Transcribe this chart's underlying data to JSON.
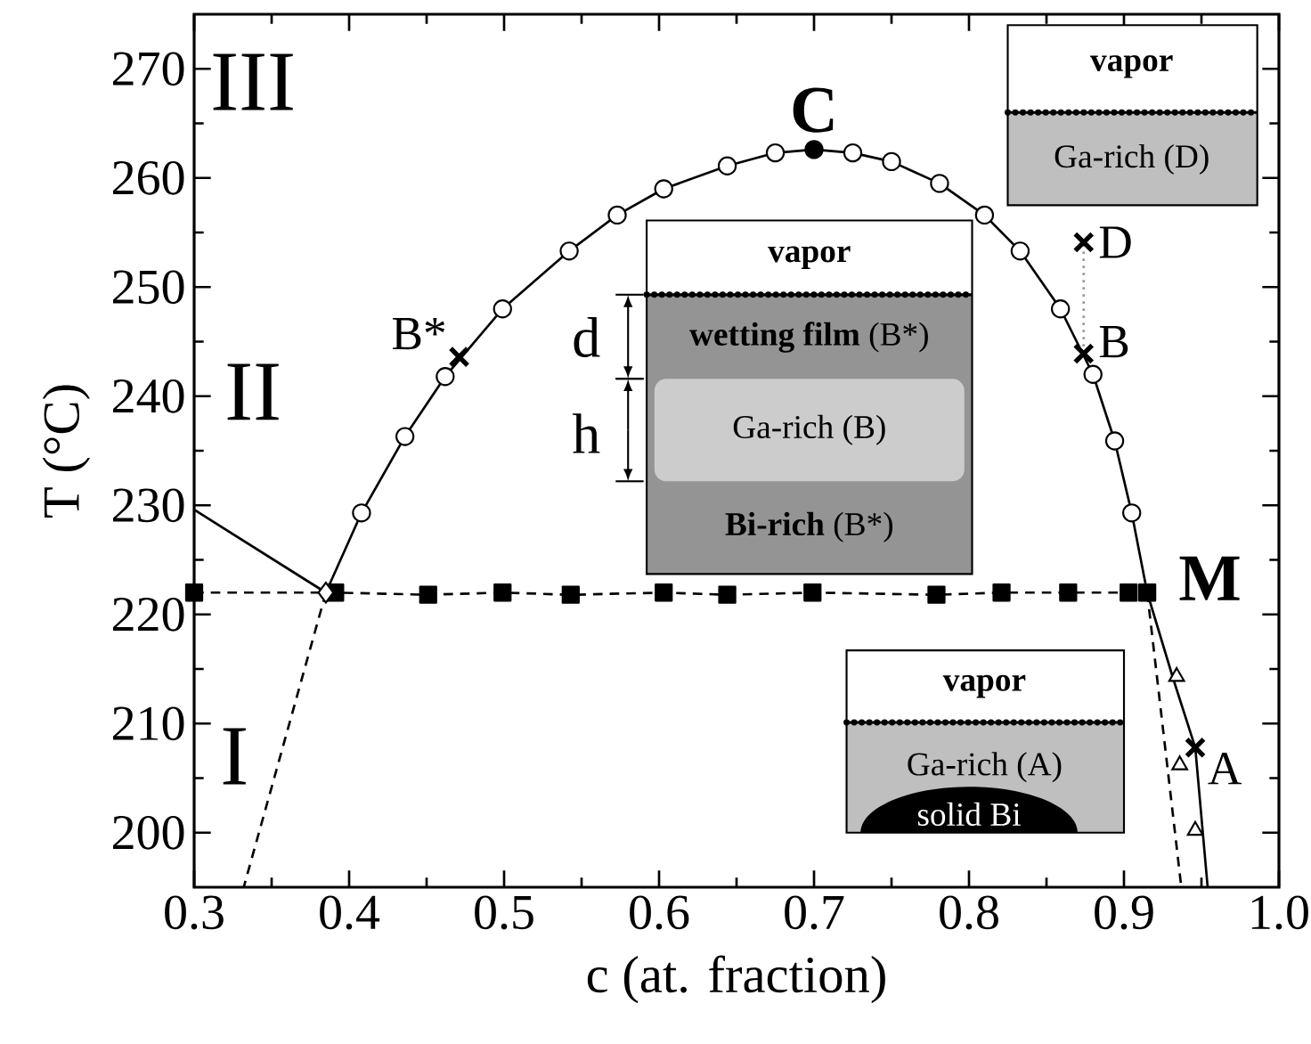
{
  "chart_data": {
    "type": "line",
    "xlabel": "c (at. fraction)",
    "ylabel": "T (°C)",
    "xlim": [
      0.3,
      1.0
    ],
    "ylim": [
      195,
      275
    ],
    "xticks": [
      0.3,
      0.4,
      0.5,
      0.6,
      0.7,
      0.8,
      0.9,
      {
        "value": 1.0,
        "label": "1.0"
      }
    ],
    "yticks": [
      200,
      210,
      220,
      230,
      240,
      250,
      260,
      270
    ],
    "series": [
      {
        "marker": "none",
        "line_style": "solid",
        "color": "#000000",
        "x": [
          0.385,
          0.408,
          0.436,
          0.462,
          0.499,
          0.542,
          0.573,
          0.603,
          0.644,
          0.675,
          0.7,
          0.725,
          0.75,
          0.781,
          0.81,
          0.833,
          0.859,
          0.88,
          0.894,
          0.905,
          0.915,
          0.932,
          0.946,
          0.954
        ],
        "values": [
          222,
          229.3,
          236.3,
          241.8,
          248.0,
          253.3,
          256.6,
          259.0,
          261.1,
          262.3,
          262.6,
          262.3,
          261.5,
          259.5,
          256.6,
          253.3,
          248.0,
          242.0,
          235.9,
          229.3,
          222,
          214,
          207.8,
          195
        ]
      },
      {
        "type": "scatter",
        "marker": "circle",
        "color": "#ffffff",
        "x": [
          0.408,
          0.436,
          0.462,
          0.499,
          0.542,
          0.573,
          0.603,
          0.644,
          0.675,
          0.725,
          0.75,
          0.781,
          0.81,
          0.833,
          0.859,
          0.88,
          0.894,
          0.905
        ],
        "values": [
          229.3,
          236.3,
          241.8,
          248.0,
          253.3,
          256.6,
          259.0,
          261.1,
          262.3,
          262.3,
          261.5,
          259.5,
          256.6,
          253.3,
          248.0,
          242.0,
          235.9,
          229.3
        ]
      },
      {
        "type": "scatter",
        "marker": "circle",
        "color": "#000000",
        "x": [
          0.7
        ],
        "values": [
          262.6
        ]
      },
      {
        "marker": "none",
        "line_style": "solid",
        "color": "#000000",
        "x": [
          0.3,
          0.385
        ],
        "values": [
          229.6,
          222
        ]
      },
      {
        "marker": "square",
        "line_style": "dashed",
        "color": "#000000",
        "x": [
          0.3,
          0.391,
          0.451,
          0.499,
          0.543,
          0.603,
          0.644,
          0.699,
          0.779,
          0.821,
          0.864,
          0.903,
          0.915
        ],
        "values": [
          222,
          222,
          221.8,
          222,
          221.8,
          222,
          221.8,
          222,
          221.8,
          222,
          222,
          222,
          222
        ]
      },
      {
        "type": "scatter",
        "marker": "diamond",
        "color": "#ffffff",
        "x": [
          0.385
        ],
        "values": [
          222
        ]
      },
      {
        "marker": "none",
        "line_style": "dashed",
        "color": "#000000",
        "x": [
          0.385,
          0.332
        ],
        "values": [
          222,
          195
        ]
      },
      {
        "marker": "none",
        "line_style": "dashed",
        "color": "#000000",
        "x": [
          0.915,
          0.937
        ],
        "values": [
          222,
          195
        ]
      },
      {
        "type": "scatter",
        "marker": "triangle",
        "color": "#ffffff",
        "x": [
          0.934,
          0.936,
          0.946
        ],
        "values": [
          214.3,
          206.2,
          200.2
        ]
      },
      {
        "type": "scatter",
        "marker": "cross",
        "color": "#000000",
        "x": [
          0.471,
          0.874,
          0.874,
          0.946
        ],
        "values": [
          243.6,
          243.9,
          254.1,
          207.8
        ]
      },
      {
        "marker": "none",
        "line_style": "dotted",
        "color": "#999999",
        "x": [
          0.874,
          0.874
        ],
        "values": [
          243.9,
          254.1
        ]
      }
    ],
    "annotations": [
      {
        "text": "C",
        "x": 0.7,
        "y": 262.6
      },
      {
        "text": "M",
        "x": 0.915,
        "y": 222
      },
      {
        "text": "B*",
        "x": 0.471,
        "y": 243.6
      },
      {
        "text": "B",
        "x": 0.874,
        "y": 243.9
      },
      {
        "text": "D",
        "x": 0.874,
        "y": 254.1
      },
      {
        "text": "A",
        "x": 0.946,
        "y": 207.8
      },
      "III",
      "II",
      "I",
      "vapor",
      "Ga-rich (D)",
      "vapor",
      "**wetting film** (B*)",
      "Ga-rich (B)",
      "**Bi-rich** (B*)",
      "d",
      "h",
      "vapor",
      "Ga-rich (A)",
      "solid Bi"
    ]
  }
}
